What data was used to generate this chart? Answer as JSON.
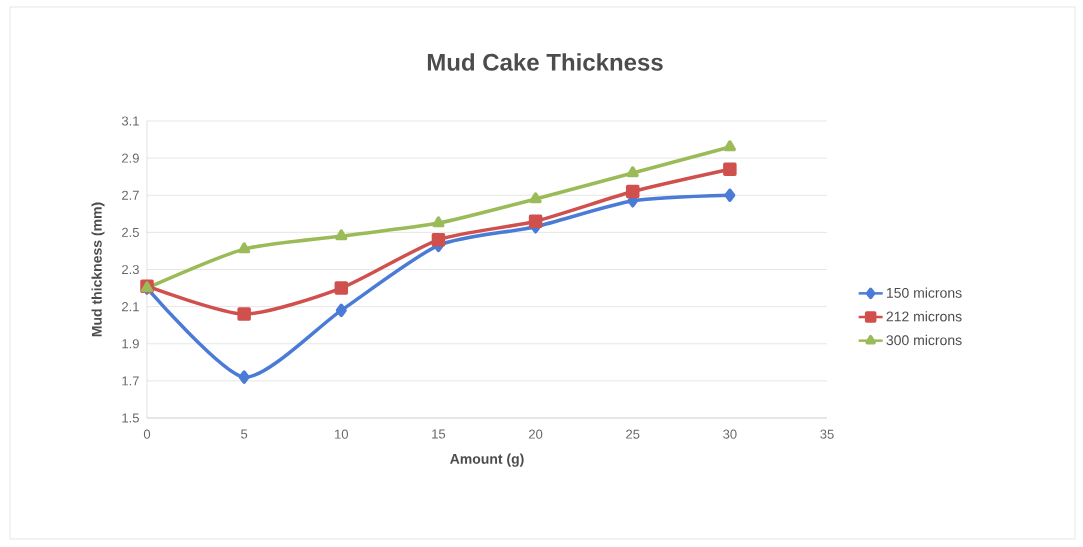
{
  "chart_data": {
    "type": "line",
    "title": "Mud Cake Thickness",
    "xlabel": "Amount (g)",
    "ylabel": "Mud thickness (mm)",
    "x": [
      0,
      5,
      10,
      15,
      20,
      25,
      30
    ],
    "series": [
      {
        "name": "150 microns",
        "color": "#4a7bd6",
        "marker": "diamond",
        "values": [
          2.2,
          1.72,
          2.08,
          2.43,
          2.53,
          2.67,
          2.7
        ]
      },
      {
        "name": "212 microns",
        "color": "#d0504d",
        "marker": "square",
        "values": [
          2.21,
          2.06,
          2.2,
          2.46,
          2.56,
          2.72,
          2.84
        ]
      },
      {
        "name": "300 microns",
        "color": "#9bbb59",
        "marker": "triangle",
        "values": [
          2.2,
          2.41,
          2.48,
          2.55,
          2.68,
          2.82,
          2.96
        ]
      }
    ],
    "xlim": [
      0,
      35
    ],
    "xticks": [
      0,
      5,
      10,
      15,
      20,
      25,
      30,
      35
    ],
    "ylim": [
      1.5,
      3.1
    ],
    "yticks": [
      1.5,
      1.7,
      1.9,
      2.1,
      2.3,
      2.5,
      2.7,
      2.9,
      3.1
    ],
    "grid": "y",
    "legend": "right"
  }
}
